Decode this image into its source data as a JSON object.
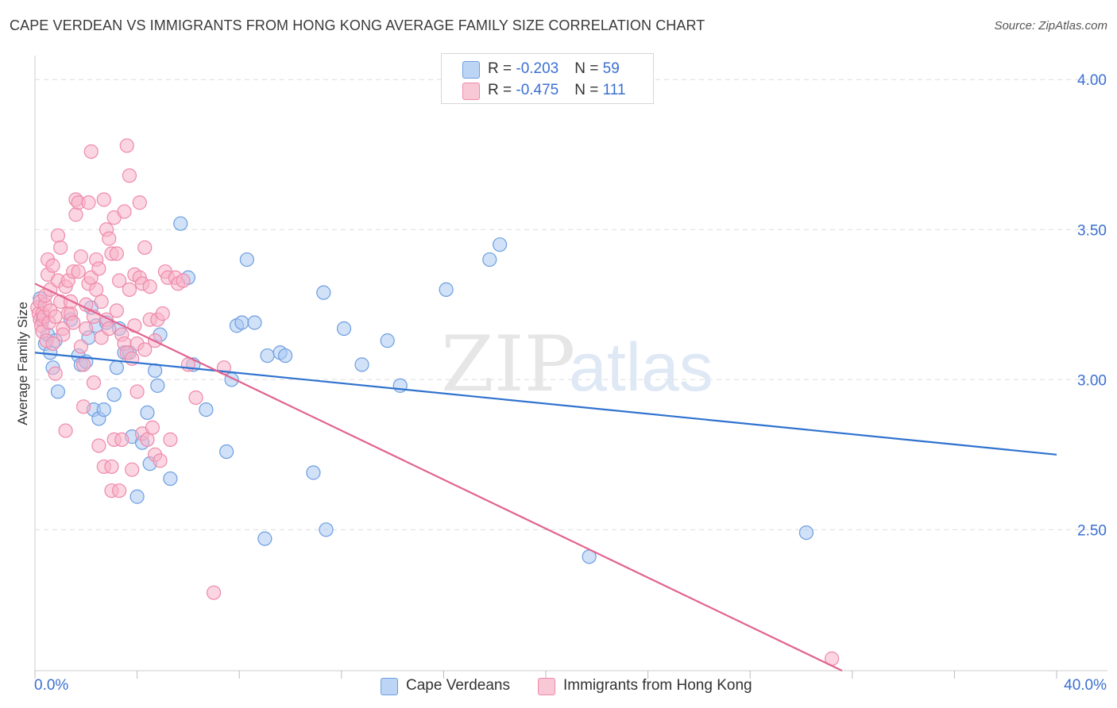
{
  "title": "CAPE VERDEAN VS IMMIGRANTS FROM HONG KONG AVERAGE FAMILY SIZE CORRELATION CHART",
  "source": "Source: ZipAtlas.com",
  "watermark": {
    "zip": "ZIP",
    "atlas": "atlas"
  },
  "legend": {
    "rows": [
      {
        "r_label": "R = ",
        "r_value": "-0.203",
        "n_label": "N = ",
        "n_value": "59"
      },
      {
        "r_label": "R = ",
        "r_value": "-0.475",
        "n_label": "N = ",
        "n_value": "111"
      }
    ]
  },
  "colors": {
    "blue_fill": "#a9c8f2",
    "blue_stroke": "#6d9ee0",
    "blue_line": "#2f72cf",
    "pink_fill": "#f7b3c9",
    "pink_stroke": "#ee8aaa",
    "pink_line": "#e2638f",
    "axis_text": "#3b6fd1",
    "grid": "#dddddd"
  },
  "chart_data": {
    "type": "scatter",
    "title": "CAPE VERDEAN VS IMMIGRANTS FROM HONG KONG AVERAGE FAMILY SIZE CORRELATION CHART",
    "xlabel": "",
    "ylabel": "Average Family Size",
    "xlim": [
      0,
      40
    ],
    "ylim": [
      2.03,
      4.08
    ],
    "x_tick_labels": [
      "0.0%",
      "40.0%"
    ],
    "y_ticks": [
      2.5,
      3.0,
      3.5,
      4.0
    ],
    "y_tick_labels": [
      "2.50",
      "3.00",
      "3.50",
      "4.00"
    ],
    "grid": true,
    "series": [
      {
        "name": "Cape Verdeans",
        "color": "#a9c8f2",
        "trend": {
          "x": [
            0,
            40
          ],
          "y": [
            3.09,
            2.75
          ]
        },
        "points": [
          [
            0.2,
            3.27
          ],
          [
            0.3,
            3.2
          ],
          [
            0.4,
            3.12
          ],
          [
            0.5,
            3.15
          ],
          [
            0.6,
            3.09
          ],
          [
            0.7,
            3.04
          ],
          [
            0.8,
            3.13
          ],
          [
            0.9,
            2.96
          ],
          [
            1.4,
            3.2
          ],
          [
            1.7,
            3.08
          ],
          [
            1.8,
            3.05
          ],
          [
            2.0,
            3.06
          ],
          [
            2.1,
            3.14
          ],
          [
            2.2,
            3.24
          ],
          [
            2.3,
            2.9
          ],
          [
            2.4,
            3.18
          ],
          [
            2.5,
            2.87
          ],
          [
            2.7,
            2.9
          ],
          [
            2.8,
            3.19
          ],
          [
            3.1,
            2.95
          ],
          [
            3.2,
            3.04
          ],
          [
            3.3,
            3.17
          ],
          [
            3.5,
            3.09
          ],
          [
            3.7,
            3.09
          ],
          [
            3.8,
            2.81
          ],
          [
            4.0,
            2.61
          ],
          [
            4.2,
            2.79
          ],
          [
            4.4,
            2.89
          ],
          [
            4.5,
            2.72
          ],
          [
            4.7,
            3.03
          ],
          [
            4.8,
            2.98
          ],
          [
            4.9,
            3.15
          ],
          [
            5.3,
            2.67
          ],
          [
            5.7,
            3.52
          ],
          [
            6.0,
            3.34
          ],
          [
            6.2,
            3.05
          ],
          [
            6.7,
            2.9
          ],
          [
            7.5,
            2.76
          ],
          [
            7.7,
            3.0
          ],
          [
            7.9,
            3.18
          ],
          [
            8.1,
            3.19
          ],
          [
            8.3,
            3.4
          ],
          [
            8.6,
            3.19
          ],
          [
            9.0,
            2.47
          ],
          [
            9.1,
            3.08
          ],
          [
            9.6,
            3.09
          ],
          [
            9.8,
            3.08
          ],
          [
            10.9,
            2.69
          ],
          [
            11.3,
            3.29
          ],
          [
            11.4,
            2.5
          ],
          [
            12.1,
            3.17
          ],
          [
            12.8,
            3.05
          ],
          [
            13.8,
            3.13
          ],
          [
            14.3,
            2.98
          ],
          [
            16.1,
            3.3
          ],
          [
            17.8,
            3.4
          ],
          [
            18.2,
            3.45
          ],
          [
            21.7,
            2.41
          ],
          [
            30.2,
            2.49
          ]
        ]
      },
      {
        "name": "Immigrants from Hong Kong",
        "color": "#f7b3c9",
        "trend": {
          "x": [
            0,
            31.6
          ],
          "y": [
            3.32,
            2.03
          ]
        },
        "points": [
          [
            0.1,
            3.24
          ],
          [
            0.15,
            3.22
          ],
          [
            0.2,
            3.2
          ],
          [
            0.2,
            3.26
          ],
          [
            0.25,
            3.18
          ],
          [
            0.3,
            3.22
          ],
          [
            0.3,
            3.16
          ],
          [
            0.35,
            3.21
          ],
          [
            0.4,
            3.25
          ],
          [
            0.4,
            3.28
          ],
          [
            0.45,
            3.13
          ],
          [
            0.5,
            3.35
          ],
          [
            0.5,
            3.4
          ],
          [
            0.55,
            3.19
          ],
          [
            0.6,
            3.23
          ],
          [
            0.6,
            3.3
          ],
          [
            0.7,
            3.38
          ],
          [
            0.7,
            3.12
          ],
          [
            0.8,
            3.21
          ],
          [
            0.8,
            3.02
          ],
          [
            0.9,
            3.33
          ],
          [
            0.9,
            3.48
          ],
          [
            1.0,
            3.44
          ],
          [
            1.0,
            3.26
          ],
          [
            1.1,
            3.17
          ],
          [
            1.1,
            3.15
          ],
          [
            1.2,
            3.31
          ],
          [
            1.2,
            2.83
          ],
          [
            1.3,
            3.22
          ],
          [
            1.3,
            3.33
          ],
          [
            1.4,
            3.22
          ],
          [
            1.4,
            3.26
          ],
          [
            1.5,
            3.36
          ],
          [
            1.5,
            3.19
          ],
          [
            1.6,
            3.55
          ],
          [
            1.6,
            3.6
          ],
          [
            1.7,
            3.59
          ],
          [
            1.7,
            3.36
          ],
          [
            1.8,
            3.41
          ],
          [
            1.8,
            3.11
          ],
          [
            1.9,
            2.91
          ],
          [
            1.9,
            3.05
          ],
          [
            2.0,
            3.25
          ],
          [
            2.0,
            3.17
          ],
          [
            2.1,
            3.32
          ],
          [
            2.1,
            3.59
          ],
          [
            2.2,
            3.34
          ],
          [
            2.2,
            3.76
          ],
          [
            2.3,
            3.21
          ],
          [
            2.3,
            2.99
          ],
          [
            2.4,
            3.4
          ],
          [
            2.4,
            3.3
          ],
          [
            2.5,
            3.37
          ],
          [
            2.5,
            2.78
          ],
          [
            2.6,
            3.26
          ],
          [
            2.6,
            3.14
          ],
          [
            2.7,
            3.6
          ],
          [
            2.7,
            2.71
          ],
          [
            2.8,
            3.5
          ],
          [
            2.8,
            3.2
          ],
          [
            2.9,
            3.17
          ],
          [
            2.9,
            3.47
          ],
          [
            3.0,
            3.42
          ],
          [
            3.0,
            2.63
          ],
          [
            3.1,
            3.54
          ],
          [
            3.1,
            2.8
          ],
          [
            3.2,
            3.42
          ],
          [
            3.2,
            3.23
          ],
          [
            3.3,
            3.33
          ],
          [
            3.3,
            2.63
          ],
          [
            3.4,
            3.15
          ],
          [
            3.4,
            2.8
          ],
          [
            3.5,
            3.12
          ],
          [
            3.5,
            3.56
          ],
          [
            3.6,
            3.78
          ],
          [
            3.6,
            3.09
          ],
          [
            3.7,
            3.3
          ],
          [
            3.7,
            3.68
          ],
          [
            3.8,
            3.07
          ],
          [
            3.8,
            2.7
          ],
          [
            3.9,
            3.35
          ],
          [
            3.9,
            3.18
          ],
          [
            4.0,
            2.96
          ],
          [
            4.0,
            3.12
          ],
          [
            4.1,
            3.34
          ],
          [
            4.1,
            3.59
          ],
          [
            4.2,
            3.32
          ],
          [
            4.2,
            2.82
          ],
          [
            4.3,
            3.44
          ],
          [
            4.3,
            3.1
          ],
          [
            4.4,
            2.8
          ],
          [
            4.5,
            3.31
          ],
          [
            4.5,
            3.2
          ],
          [
            4.6,
            2.84
          ],
          [
            4.7,
            3.13
          ],
          [
            4.7,
            2.75
          ],
          [
            4.8,
            3.2
          ],
          [
            4.9,
            2.73
          ],
          [
            5.0,
            3.22
          ],
          [
            5.1,
            3.36
          ],
          [
            5.2,
            3.34
          ],
          [
            5.3,
            2.8
          ],
          [
            5.5,
            3.34
          ],
          [
            5.6,
            3.32
          ],
          [
            5.8,
            3.33
          ],
          [
            6.0,
            3.05
          ],
          [
            6.3,
            2.94
          ],
          [
            7.0,
            2.29
          ],
          [
            7.4,
            3.04
          ],
          [
            3.0,
            2.71
          ],
          [
            31.2,
            2.07
          ]
        ]
      }
    ]
  },
  "bottom_legend": {
    "series": [
      "Cape Verdeans",
      "Immigrants from Hong Kong"
    ]
  }
}
